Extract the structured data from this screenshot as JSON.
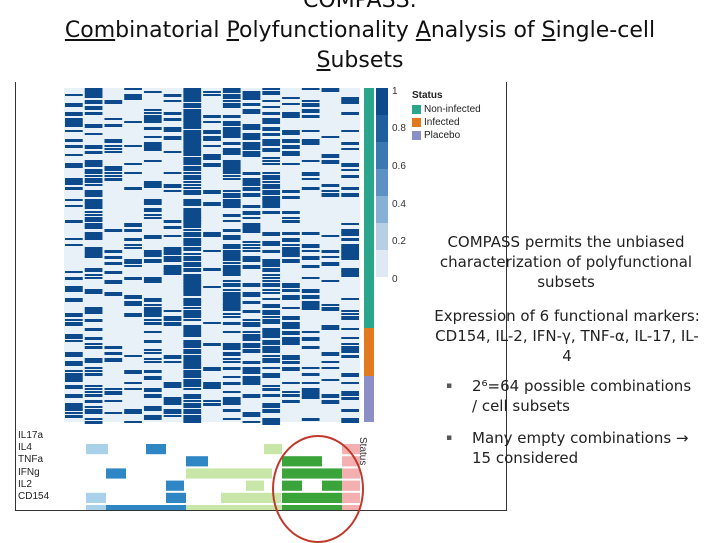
{
  "title": {
    "line1_full": "COMPASS:",
    "line2_parts": [
      {
        "u": "Com",
        "rest": "binatorial "
      },
      {
        "u": "P",
        "rest": "olyfunctionality "
      },
      {
        "u": "A",
        "rest": "nalysis of "
      },
      {
        "u": "S",
        "rest": "ingle-cell"
      }
    ],
    "line3_parts": [
      {
        "u": "S",
        "rest": "ubsets"
      }
    ]
  },
  "figure": {
    "scale_labels": [
      "1",
      "0.8",
      "0.6",
      "0.4",
      "0.2",
      "0"
    ],
    "legend": {
      "title": "Status",
      "items": [
        {
          "label": "Non-infected",
          "color": "#2aa68c"
        },
        {
          "label": "Infected",
          "color": "#e07a1c"
        },
        {
          "label": "Placebo",
          "color": "#8b8fc6"
        }
      ]
    },
    "status_axis_label": "Status",
    "markers": [
      "IL17a",
      "IL4",
      "TNFa",
      "IFNg",
      "IL2",
      "CD154"
    ]
  },
  "text": {
    "summary": "COMPASS permits the unbiased characterization of  polyfunctional subsets",
    "markers_line1": "Expression of 6 functional markers:",
    "markers_line2": "CD154, IL-2, IFN-γ, TNF-α, IL-17, IL-",
    "markers_line3": "4",
    "bullet1_line1": "2⁶=64 possible combinations",
    "bullet1_line2": "/ cell subsets",
    "bullet2_line1": "Many empty combinations →",
    "bullet2_line2": "15 considered",
    "bullet_glyph": "▪"
  },
  "colors": {
    "heat_dark": "#0d4a8c",
    "heat_light": "#e9f1f8",
    "status_noninfected": "#2aa68c",
    "status_infected": "#e07a1c",
    "status_placebo": "#8b8fc6",
    "highlight_circle": "#c0392b"
  }
}
